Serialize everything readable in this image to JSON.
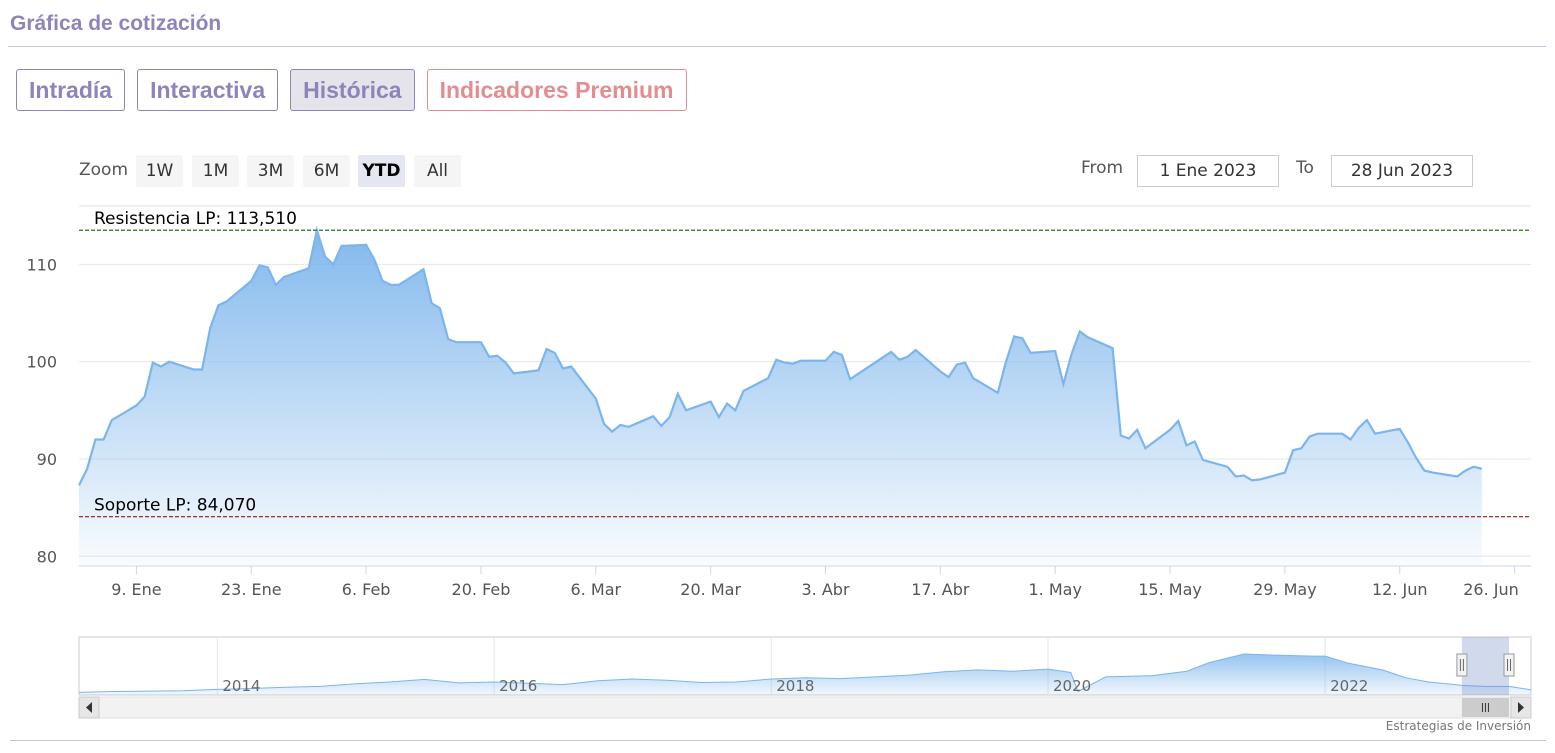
{
  "page": {
    "section_title": "Gráfica de cotización",
    "credit": "Estrategias de Inversión"
  },
  "tabs": [
    {
      "label": "Intradía",
      "active": false
    },
    {
      "label": "Interactiva",
      "active": false
    },
    {
      "label": "Histórica",
      "active": true
    },
    {
      "label": "Indicadores Premium",
      "active": false,
      "premium": true
    }
  ],
  "range_selector": {
    "zoom_label": "Zoom",
    "buttons": [
      "1W",
      "1M",
      "3M",
      "6M",
      "YTD",
      "All"
    ],
    "selected": "YTD",
    "from_label": "From",
    "from_value": "1 Ene 2023",
    "to_label": "To",
    "to_value": "28 Jun 2023"
  },
  "colors": {
    "line": "#7cb5ec",
    "resistance": "#1a7a1a",
    "support": "#8b1a1a",
    "accent": "#8d85b9",
    "premium": "#e38d90"
  },
  "chart_data": [
    {
      "type": "area",
      "title": "",
      "x_start": "2023-01-02",
      "x_end": "2023-06-28",
      "x_ticks": [
        {
          "date": "2023-01-09",
          "label": "9. Ene"
        },
        {
          "date": "2023-01-23",
          "label": "23. Ene"
        },
        {
          "date": "2023-02-06",
          "label": "6. Feb"
        },
        {
          "date": "2023-02-20",
          "label": "20. Feb"
        },
        {
          "date": "2023-03-06",
          "label": "6. Mar"
        },
        {
          "date": "2023-03-20",
          "label": "20. Mar"
        },
        {
          "date": "2023-04-03",
          "label": "3. Abr"
        },
        {
          "date": "2023-04-17",
          "label": "17. Abr"
        },
        {
          "date": "2023-05-01",
          "label": "1. May"
        },
        {
          "date": "2023-05-15",
          "label": "15. May"
        },
        {
          "date": "2023-05-29",
          "label": "29. May"
        },
        {
          "date": "2023-06-12",
          "label": "12. Jun"
        },
        {
          "date": "2023-06-26",
          "label": "26. Jun"
        }
      ],
      "y_ticks": [
        80,
        90,
        100,
        110
      ],
      "ylim": [
        79,
        116
      ],
      "grid": true,
      "plot_lines": [
        {
          "label": "Resistencia LP: 113,510",
          "value": 113.51,
          "color": "#1a7a1a"
        },
        {
          "label": "Soporte LP: 84,070",
          "value": 84.07,
          "color": "#8b1a1a"
        }
      ],
      "series": [
        {
          "values": [
            [
              "2023-01-02",
              87.3
            ],
            [
              "2023-01-03",
              89.0
            ],
            [
              "2023-01-04",
              92.0
            ],
            [
              "2023-01-05",
              92.0
            ],
            [
              "2023-01-06",
              94.0
            ],
            [
              "2023-01-09",
              95.5
            ],
            [
              "2023-01-10",
              96.4
            ],
            [
              "2023-01-11",
              99.9
            ],
            [
              "2023-01-12",
              99.5
            ],
            [
              "2023-01-13",
              100.0
            ],
            [
              "2023-01-16",
              99.2
            ],
            [
              "2023-01-17",
              99.2
            ],
            [
              "2023-01-18",
              103.5
            ],
            [
              "2023-01-19",
              105.8
            ],
            [
              "2023-01-20",
              106.2
            ],
            [
              "2023-01-23",
              108.3
            ],
            [
              "2023-01-24",
              109.9
            ],
            [
              "2023-01-25",
              109.7
            ],
            [
              "2023-01-26",
              107.9
            ],
            [
              "2023-01-27",
              108.7
            ],
            [
              "2023-01-30",
              109.6
            ],
            [
              "2023-01-31",
              113.5
            ],
            [
              "2023-02-01",
              110.8
            ],
            [
              "2023-02-02",
              110.0
            ],
            [
              "2023-02-03",
              111.9
            ],
            [
              "2023-02-06",
              112.0
            ],
            [
              "2023-02-07",
              110.5
            ],
            [
              "2023-02-08",
              108.3
            ],
            [
              "2023-02-09",
              107.9
            ],
            [
              "2023-02-10",
              107.9
            ],
            [
              "2023-02-13",
              109.5
            ],
            [
              "2023-02-14",
              106.0
            ],
            [
              "2023-02-15",
              105.5
            ],
            [
              "2023-02-16",
              102.3
            ],
            [
              "2023-02-17",
              102.0
            ],
            [
              "2023-02-20",
              102.0
            ],
            [
              "2023-02-21",
              100.5
            ],
            [
              "2023-02-22",
              100.6
            ],
            [
              "2023-02-23",
              99.9
            ],
            [
              "2023-02-24",
              98.8
            ],
            [
              "2023-02-27",
              99.1
            ],
            [
              "2023-02-28",
              101.3
            ],
            [
              "2023-03-01",
              100.9
            ],
            [
              "2023-03-02",
              99.3
            ],
            [
              "2023-03-03",
              99.5
            ],
            [
              "2023-03-06",
              96.2
            ],
            [
              "2023-03-07",
              93.6
            ],
            [
              "2023-03-08",
              92.8
            ],
            [
              "2023-03-09",
              93.5
            ],
            [
              "2023-03-10",
              93.3
            ],
            [
              "2023-03-13",
              94.4
            ],
            [
              "2023-03-14",
              93.4
            ],
            [
              "2023-03-15",
              94.3
            ],
            [
              "2023-03-16",
              96.7
            ],
            [
              "2023-03-17",
              95.0
            ],
            [
              "2023-03-20",
              95.9
            ],
            [
              "2023-03-21",
              94.3
            ],
            [
              "2023-03-22",
              95.7
            ],
            [
              "2023-03-23",
              95.0
            ],
            [
              "2023-03-24",
              97.0
            ],
            [
              "2023-03-27",
              98.3
            ],
            [
              "2023-03-28",
              100.2
            ],
            [
              "2023-03-29",
              99.9
            ],
            [
              "2023-03-30",
              99.8
            ],
            [
              "2023-03-31",
              100.1
            ],
            [
              "2023-04-03",
              100.1
            ],
            [
              "2023-04-04",
              101.0
            ],
            [
              "2023-04-05",
              100.7
            ],
            [
              "2023-04-06",
              98.2
            ],
            [
              "2023-04-11",
              101.0
            ],
            [
              "2023-04-12",
              100.2
            ],
            [
              "2023-04-13",
              100.5
            ],
            [
              "2023-04-14",
              101.2
            ],
            [
              "2023-04-17",
              99.0
            ],
            [
              "2023-04-18",
              98.4
            ],
            [
              "2023-04-19",
              99.7
            ],
            [
              "2023-04-20",
              99.9
            ],
            [
              "2023-04-21",
              98.3
            ],
            [
              "2023-04-24",
              96.8
            ],
            [
              "2023-04-25",
              100.0
            ],
            [
              "2023-04-26",
              102.6
            ],
            [
              "2023-04-27",
              102.4
            ],
            [
              "2023-04-28",
              100.9
            ],
            [
              "2023-05-01",
              101.1
            ],
            [
              "2023-05-02",
              97.7
            ],
            [
              "2023-05-03",
              100.8
            ],
            [
              "2023-05-04",
              103.1
            ],
            [
              "2023-05-05",
              102.5
            ],
            [
              "2023-05-08",
              101.4
            ],
            [
              "2023-05-09",
              92.4
            ],
            [
              "2023-05-10",
              92.1
            ],
            [
              "2023-05-11",
              93.0
            ],
            [
              "2023-05-12",
              91.1
            ],
            [
              "2023-05-15",
              93.0
            ],
            [
              "2023-05-16",
              93.9
            ],
            [
              "2023-05-17",
              91.4
            ],
            [
              "2023-05-18",
              91.8
            ],
            [
              "2023-05-19",
              89.9
            ],
            [
              "2023-05-22",
              89.2
            ],
            [
              "2023-05-23",
              88.2
            ],
            [
              "2023-05-24",
              88.3
            ],
            [
              "2023-05-25",
              87.8
            ],
            [
              "2023-05-26",
              87.9
            ],
            [
              "2023-05-29",
              88.6
            ],
            [
              "2023-05-30",
              90.9
            ],
            [
              "2023-05-31",
              91.1
            ],
            [
              "2023-06-01",
              92.3
            ],
            [
              "2023-06-02",
              92.6
            ],
            [
              "2023-06-05",
              92.6
            ],
            [
              "2023-06-06",
              92.0
            ],
            [
              "2023-06-07",
              93.2
            ],
            [
              "2023-06-08",
              94.0
            ],
            [
              "2023-06-09",
              92.6
            ],
            [
              "2023-06-12",
              93.1
            ],
            [
              "2023-06-13",
              91.7
            ],
            [
              "2023-06-14",
              90.1
            ],
            [
              "2023-06-15",
              88.8
            ],
            [
              "2023-06-16",
              88.6
            ],
            [
              "2023-06-19",
              88.2
            ],
            [
              "2023-06-20",
              88.8
            ],
            [
              "2023-06-21",
              89.2
            ],
            [
              "2023-06-22",
              89.0
            ]
          ]
        }
      ]
    },
    {
      "type": "area",
      "title": "",
      "x_start": "2013-01-01",
      "x_end": "2023-06-28",
      "x_ticks": [
        {
          "date": "2014-01-01",
          "label": "2014"
        },
        {
          "date": "2016-01-01",
          "label": "2016"
        },
        {
          "date": "2018-01-01",
          "label": "2018"
        },
        {
          "date": "2020-01-01",
          "label": "2020"
        },
        {
          "date": "2022-01-01",
          "label": "2022"
        }
      ],
      "ylim": [
        0,
        125
      ],
      "selected_range": [
        "2023-01-02",
        "2023-06-28"
      ],
      "series": [
        {
          "values": [
            [
              "2013-01-01",
              6
            ],
            [
              "2013-04-01",
              8
            ],
            [
              "2013-07-01",
              9
            ],
            [
              "2013-10-01",
              10
            ],
            [
              "2014-01-01",
              13
            ],
            [
              "2014-04-01",
              15
            ],
            [
              "2014-07-01",
              18
            ],
            [
              "2014-10-01",
              20
            ],
            [
              "2015-01-01",
              26
            ],
            [
              "2015-04-01",
              30
            ],
            [
              "2015-07-01",
              36
            ],
            [
              "2015-10-01",
              28
            ],
            [
              "2016-01-01",
              30
            ],
            [
              "2016-04-01",
              27
            ],
            [
              "2016-07-01",
              24
            ],
            [
              "2016-10-01",
              33
            ],
            [
              "2017-01-01",
              37
            ],
            [
              "2017-04-01",
              34
            ],
            [
              "2017-07-01",
              29
            ],
            [
              "2017-10-01",
              30
            ],
            [
              "2018-01-01",
              37
            ],
            [
              "2018-04-01",
              40
            ],
            [
              "2018-07-01",
              38
            ],
            [
              "2018-10-01",
              42
            ],
            [
              "2019-01-01",
              46
            ],
            [
              "2019-04-01",
              54
            ],
            [
              "2019-07-01",
              58
            ],
            [
              "2019-10-01",
              55
            ],
            [
              "2020-01-01",
              60
            ],
            [
              "2020-03-01",
              52
            ],
            [
              "2020-03-20",
              8
            ],
            [
              "2020-06-01",
              42
            ],
            [
              "2020-10-01",
              45
            ],
            [
              "2021-01-01",
              55
            ],
            [
              "2021-03-01",
              75
            ],
            [
              "2021-06-01",
              95
            ],
            [
              "2021-09-01",
              92
            ],
            [
              "2021-12-01",
              90
            ],
            [
              "2022-01-01",
              90
            ],
            [
              "2022-03-01",
              74
            ],
            [
              "2022-06-01",
              58
            ],
            [
              "2022-08-01",
              40
            ],
            [
              "2022-10-01",
              30
            ],
            [
              "2022-12-01",
              25
            ],
            [
              "2023-01-01",
              22
            ],
            [
              "2023-03-01",
              20
            ],
            [
              "2023-05-01",
              20
            ],
            [
              "2023-06-28",
              12
            ]
          ]
        }
      ]
    }
  ]
}
